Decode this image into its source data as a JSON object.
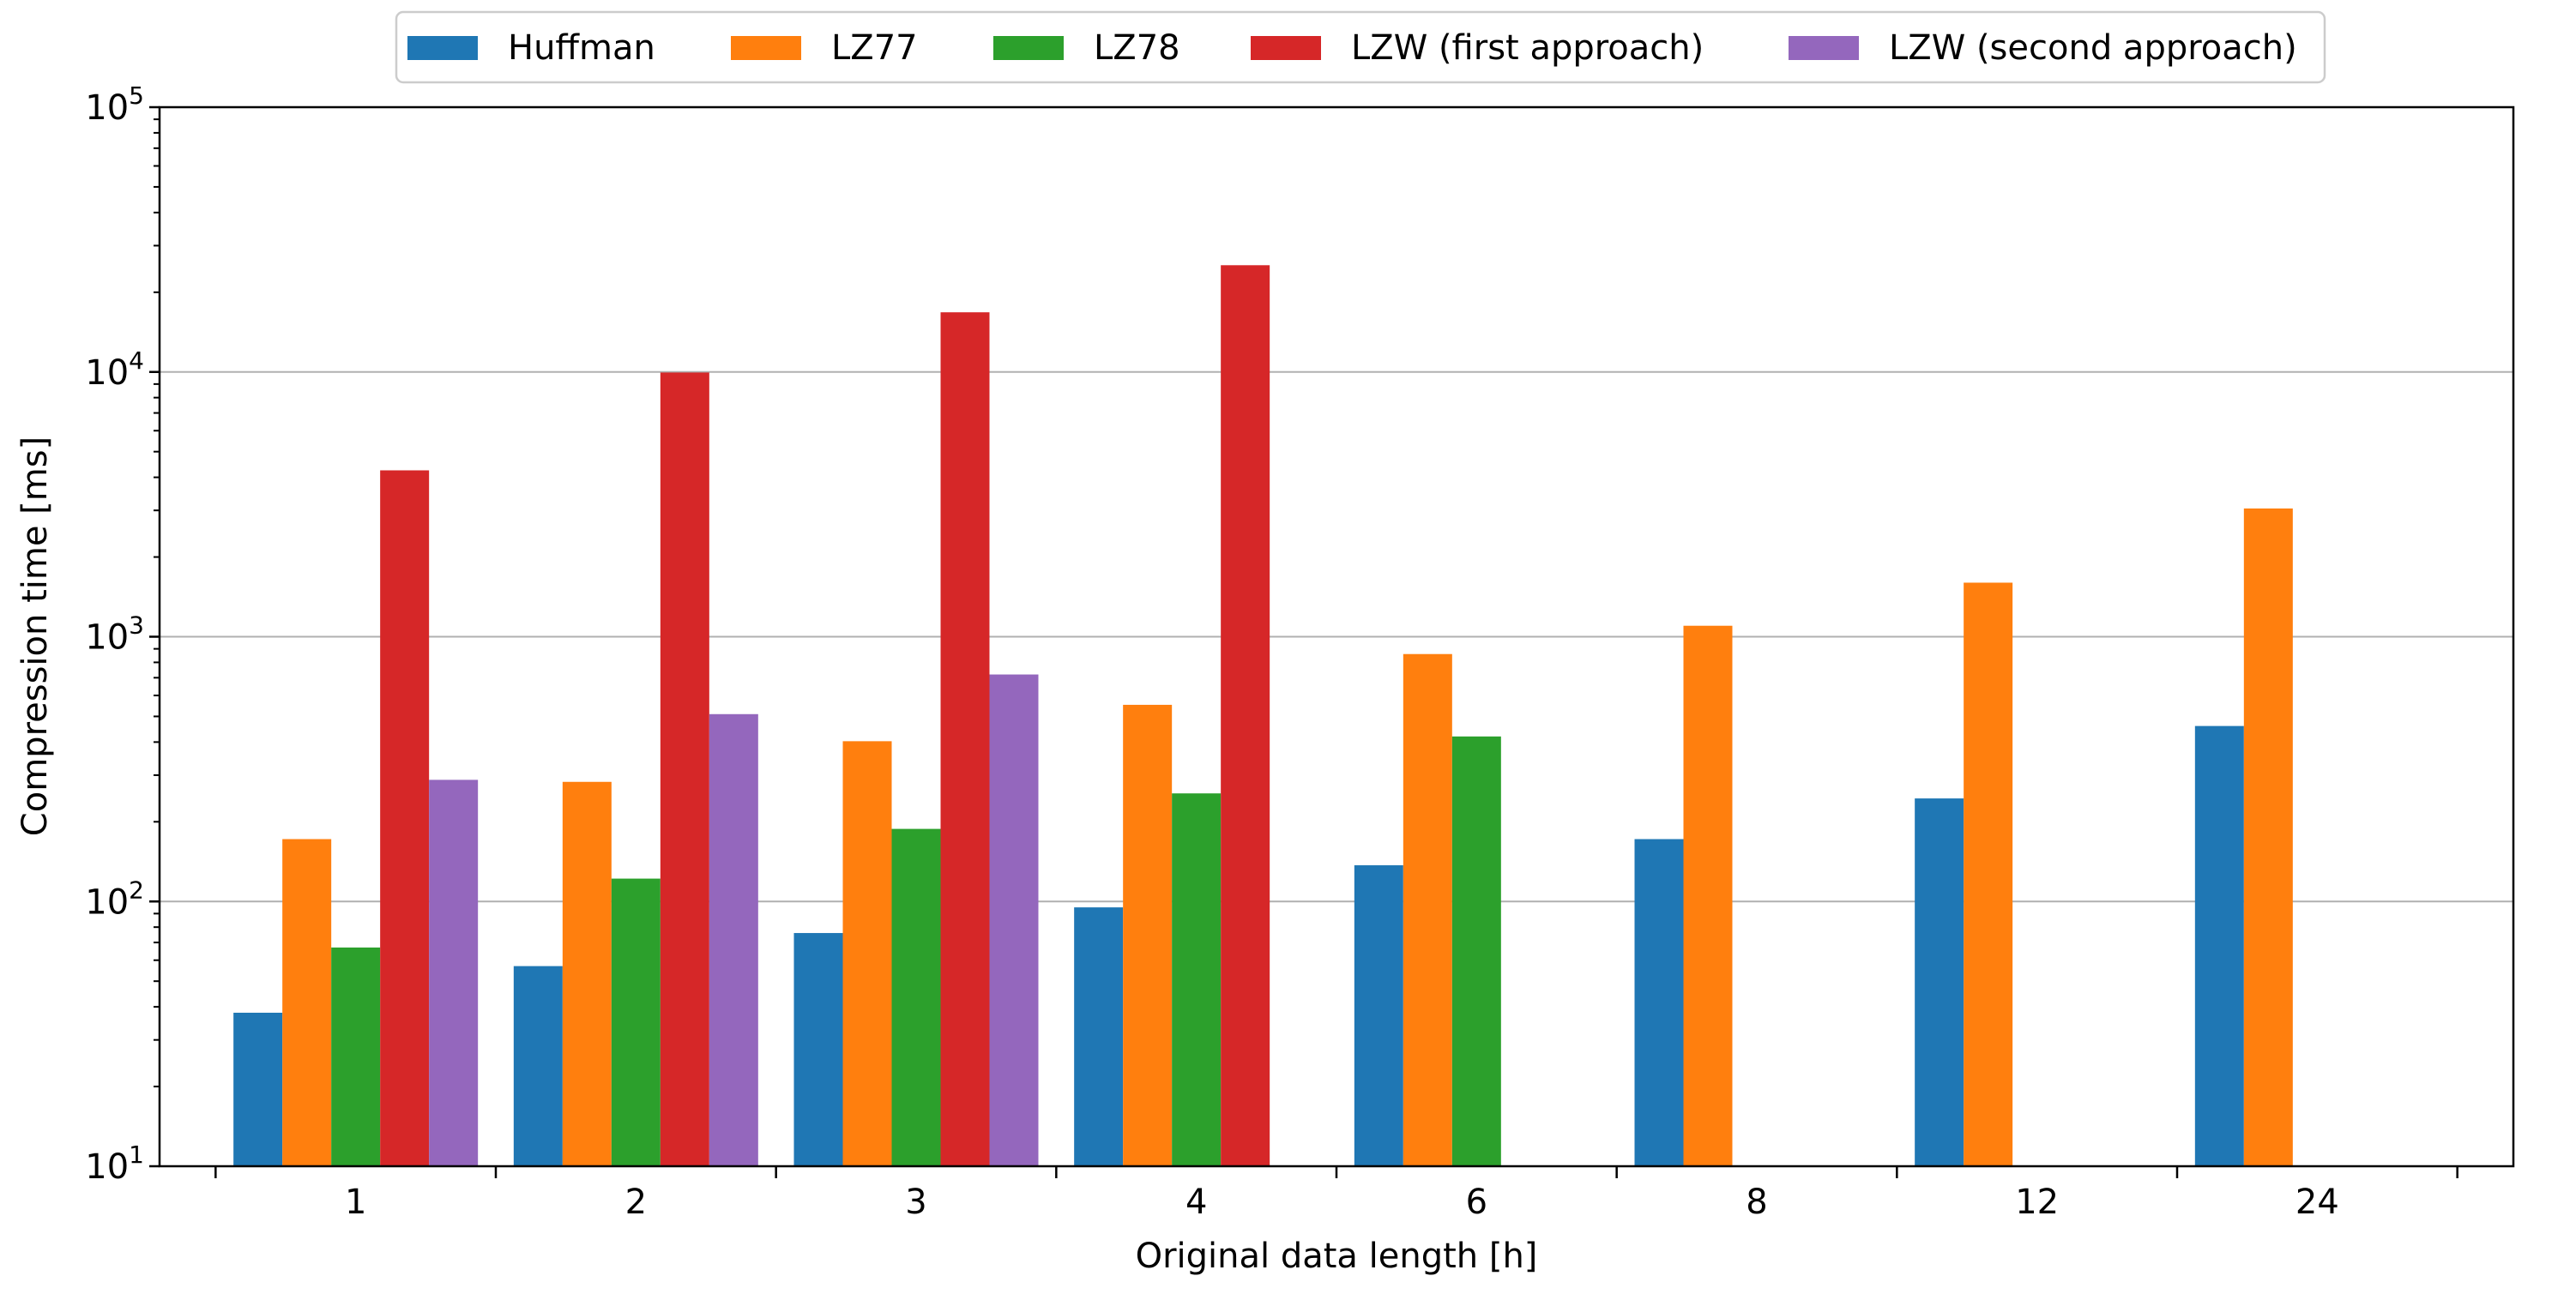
{
  "chart_data": {
    "type": "bar",
    "title": "",
    "xlabel": "Original data length [h]",
    "ylabel": "Compression time [ms]",
    "yscale": "log",
    "ylim": [
      10,
      100000
    ],
    "grid": "y-major",
    "legend_position": "top-center",
    "categories": [
      "1",
      "2",
      "3",
      "4",
      "6",
      "8",
      "12",
      "24"
    ],
    "y_ticks": [
      {
        "value": 10,
        "base": "10",
        "exp": "1"
      },
      {
        "value": 100,
        "base": "10",
        "exp": "2"
      },
      {
        "value": 1000,
        "base": "10",
        "exp": "3"
      },
      {
        "value": 10000,
        "base": "10",
        "exp": "4"
      },
      {
        "value": 100000,
        "base": "10",
        "exp": "5"
      }
    ],
    "series": [
      {
        "name": "Huffman",
        "color": "#1f77b4",
        "values": [
          38,
          57,
          76,
          95,
          137,
          172,
          245,
          460
        ]
      },
      {
        "name": "LZ77",
        "color": "#ff7f0e",
        "values": [
          172,
          283,
          403,
          553,
          860,
          1100,
          1600,
          3050
        ]
      },
      {
        "name": "LZ78",
        "color": "#2ca02c",
        "values": [
          67,
          122,
          188,
          256,
          420,
          null,
          null,
          null
        ]
      },
      {
        "name": "LZW (first approach)",
        "color": "#d62728",
        "values": [
          4250,
          9950,
          16800,
          25300,
          null,
          null,
          null,
          null
        ]
      },
      {
        "name": "LZW (second approach)",
        "color": "#9467bd",
        "values": [
          288,
          510,
          720,
          null,
          null,
          null,
          null,
          null
        ]
      }
    ]
  }
}
